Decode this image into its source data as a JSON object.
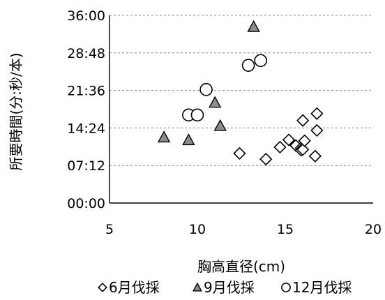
{
  "chart_data": {
    "type": "scatter",
    "title": "",
    "xlabel": "胸高直径(cm)",
    "ylabel": "所要時間(分:秒/本)",
    "xlim": [
      5,
      20
    ],
    "ylim": [
      0,
      2160
    ],
    "x_ticks": [
      5,
      10,
      15,
      20
    ],
    "x_tick_labels": [
      "5",
      "10",
      "15",
      "20"
    ],
    "y_ticks": [
      0,
      432,
      864,
      1296,
      1728,
      2160
    ],
    "y_tick_labels": [
      "00:00",
      "07:12",
      "14:24",
      "21:36",
      "28:48",
      "36:00"
    ],
    "y_unit": "seconds (displayed as mm:ss)",
    "grid": "horizontal dashed",
    "legend_position": "bottom",
    "series": [
      {
        "name": "6月伐採",
        "marker": "diamond",
        "points": [
          [
            12.4,
            571
          ],
          [
            13.9,
            505
          ],
          [
            14.7,
            643
          ],
          [
            15.2,
            727
          ],
          [
            15.6,
            662
          ],
          [
            15.9,
            633
          ],
          [
            15.9,
            608
          ],
          [
            16.0,
            615
          ],
          [
            16.0,
            950
          ],
          [
            16.1,
            717
          ],
          [
            16.7,
            540
          ],
          [
            16.8,
            836
          ],
          [
            16.8,
            1029
          ]
        ]
      },
      {
        "name": "9月伐採",
        "marker": "triangle",
        "points": [
          [
            8.1,
            758
          ],
          [
            9.5,
            726
          ],
          [
            11.0,
            1157
          ],
          [
            11.3,
            890
          ],
          [
            13.2,
            2030
          ]
        ]
      },
      {
        "name": "12月伐採",
        "marker": "circle",
        "points": [
          [
            9.5,
            1013
          ],
          [
            10.0,
            1013
          ],
          [
            10.5,
            1306
          ],
          [
            12.9,
            1584
          ],
          [
            13.6,
            1640
          ]
        ]
      }
    ]
  }
}
